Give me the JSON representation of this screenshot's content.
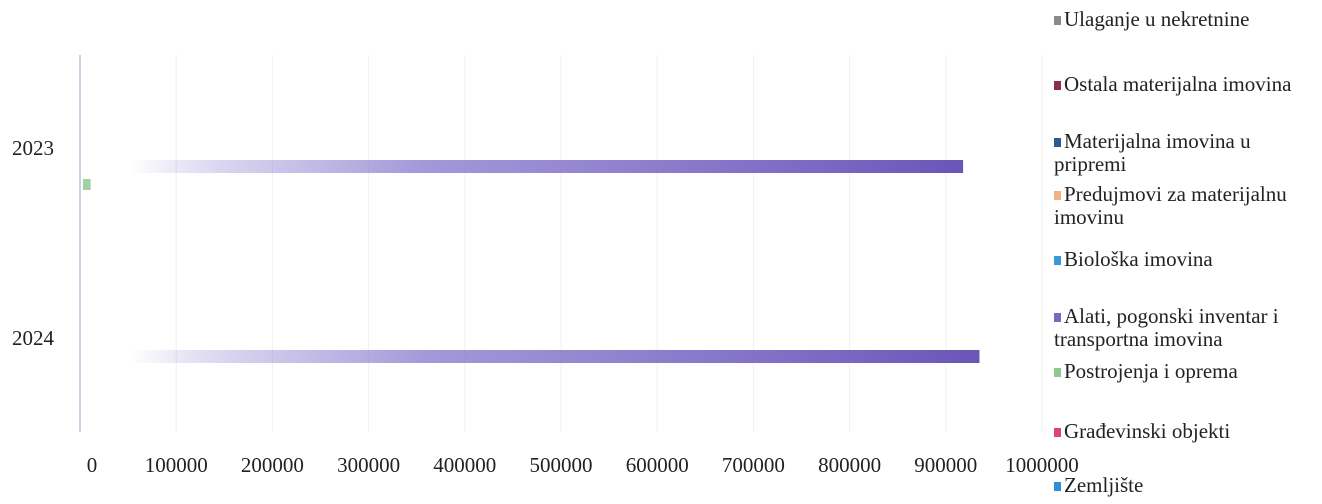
{
  "chart_data": {
    "type": "bar",
    "orientation": "horizontal",
    "stacked": true,
    "categories": [
      "2023",
      "2024"
    ],
    "x_ticks": [
      "0",
      "100000",
      "200000",
      "300000",
      "400000",
      "500000",
      "600000",
      "700000",
      "800000",
      "900000",
      "1000000"
    ],
    "xlim": [
      0,
      1000000
    ],
    "grid": true,
    "legend_position": "right",
    "series": [
      {
        "name": "Ulaganje u nekretnine",
        "color": "#8a8a8a",
        "values": [
          0,
          0
        ]
      },
      {
        "name": "Ostala materijalna imovina",
        "color": "#8b2e4a",
        "values": [
          0,
          0
        ]
      },
      {
        "name": "Materijalna imovina u pripremi",
        "color": "#2a5d8f",
        "values": [
          0,
          0
        ]
      },
      {
        "name": "Predujmovi za materijalnu imovinu",
        "color": "#f4b183",
        "values": [
          0,
          0
        ]
      },
      {
        "name": "Biološka imovina",
        "color": "#3a9ad9",
        "values": [
          0,
          0
        ]
      },
      {
        "name": "Alati, pogonski inventar i transportna imovina",
        "color": "#7b68c4",
        "values": [
          918000,
          935000
        ]
      },
      {
        "name": "Postrojenja i oprema",
        "color": "#8fc98f",
        "values": [
          11000,
          0
        ]
      },
      {
        "name": "Građevinski objekti",
        "color": "#d9477a",
        "values": [
          0,
          0
        ]
      },
      {
        "name": "Zemljište",
        "color": "#2f8fd8",
        "values": [
          0,
          0
        ]
      }
    ]
  }
}
